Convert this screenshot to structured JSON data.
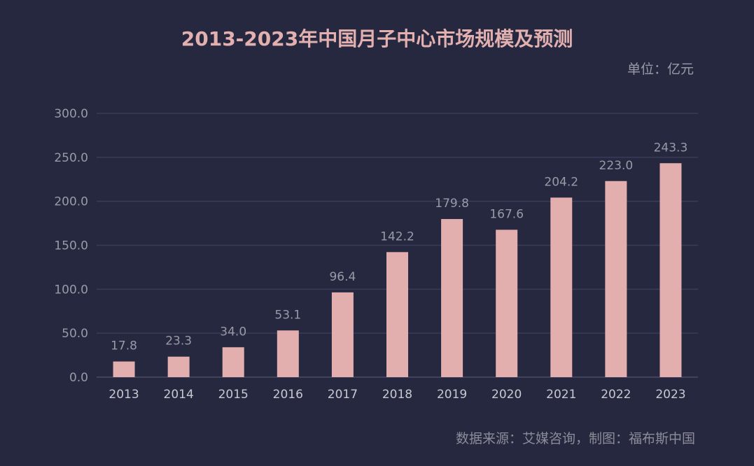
{
  "title": "2013-2023年中国月子中心市场规模及预测",
  "unit_label": "单位：亿元",
  "source": "数据来源：艾媒咨询，制图：福布斯中国",
  "colors": {
    "background": "#262840",
    "bar": "#e3aeae",
    "title": "#e3b0b0"
  },
  "chart_data": {
    "type": "bar",
    "title": "2013-2023年中国月子中心市场规模及预测",
    "xlabel": "",
    "ylabel": "",
    "categories": [
      "2013",
      "2014",
      "2015",
      "2016",
      "2017",
      "2018",
      "2019",
      "2020",
      "2021",
      "2022",
      "2023"
    ],
    "values": [
      17.8,
      23.3,
      34.0,
      53.1,
      96.4,
      142.2,
      179.8,
      167.6,
      204.2,
      223.0,
      243.3
    ],
    "value_labels": [
      "17.8",
      "23.3",
      "34.0",
      "53.1",
      "96.4",
      "142.2",
      "179.8",
      "167.6",
      "204.2",
      "223.0",
      "243.3"
    ],
    "ylim": [
      0,
      300
    ],
    "yticks": [
      "0.0",
      "50.0",
      "100.0",
      "150.0",
      "200.0",
      "250.0",
      "300.0"
    ],
    "grid": true,
    "legend": "none"
  }
}
